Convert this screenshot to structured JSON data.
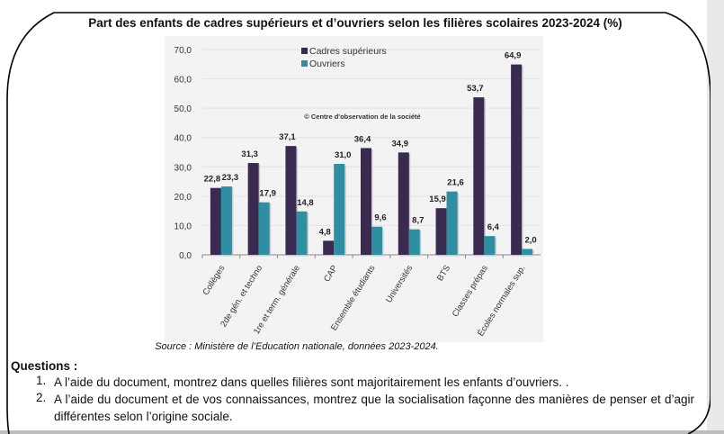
{
  "document": {
    "title": "Part des enfants de cadres supérieurs et d’ouvriers selon les filières scolaires 2023-2024 (%)",
    "source": "Source : Ministère de l’Education nationale, données 2023-2024.",
    "questions_title": "Questions :",
    "questions": [
      {
        "number": "1.",
        "text": "A l’aide du document, montrez dans quelles filières sont majoritairement les enfants d’ouvriers. ."
      },
      {
        "number": "2.",
        "text": "A l’aide du document et de vos connaissances, montrez que la socialisation façonne des manières de penser et d’agir différentes selon l’origine sociale."
      }
    ]
  },
  "chart_data": {
    "type": "bar",
    "title": "Part des enfants de cadres supérieurs et d’ouvriers selon les filières scolaires 2023-2024 (%)",
    "watermark": "© Centre d'observation de la société",
    "categories": [
      "Collèges",
      "2de gén. et techno",
      "1re et term. générale",
      "CAP",
      "Ensemble étudiants",
      "Universités",
      "BTS",
      "Classes prépas",
      "Écoles normales sup."
    ],
    "series": [
      {
        "name": "Cadres supérieurs",
        "color": "#3b2a4f",
        "values": [
          22.8,
          31.3,
          37.1,
          4.8,
          36.4,
          34.9,
          15.9,
          53.7,
          64.9
        ],
        "labels": [
          "22,8",
          "31,3",
          "37,1",
          "4,8",
          "36,4",
          "34,9",
          "15,9",
          "53,7",
          "64,9"
        ]
      },
      {
        "name": "Ouvriers",
        "color": "#2e8fa3",
        "values": [
          23.3,
          17.9,
          14.8,
          31.0,
          9.6,
          8.7,
          21.6,
          6.4,
          2.0
        ],
        "labels": [
          "23,3",
          "17,9",
          "14,8",
          "31,0",
          "9,6",
          "8,7",
          "21,6",
          "6,4",
          "2,0"
        ]
      }
    ],
    "yticks": [
      "0,0",
      "10,0",
      "20,0",
      "30,0",
      "40,0",
      "50,0",
      "60,0",
      "70,0"
    ],
    "ylim": [
      0,
      70
    ],
    "xlabel": "",
    "ylabel": "",
    "grid": true,
    "legend": "top-center"
  }
}
